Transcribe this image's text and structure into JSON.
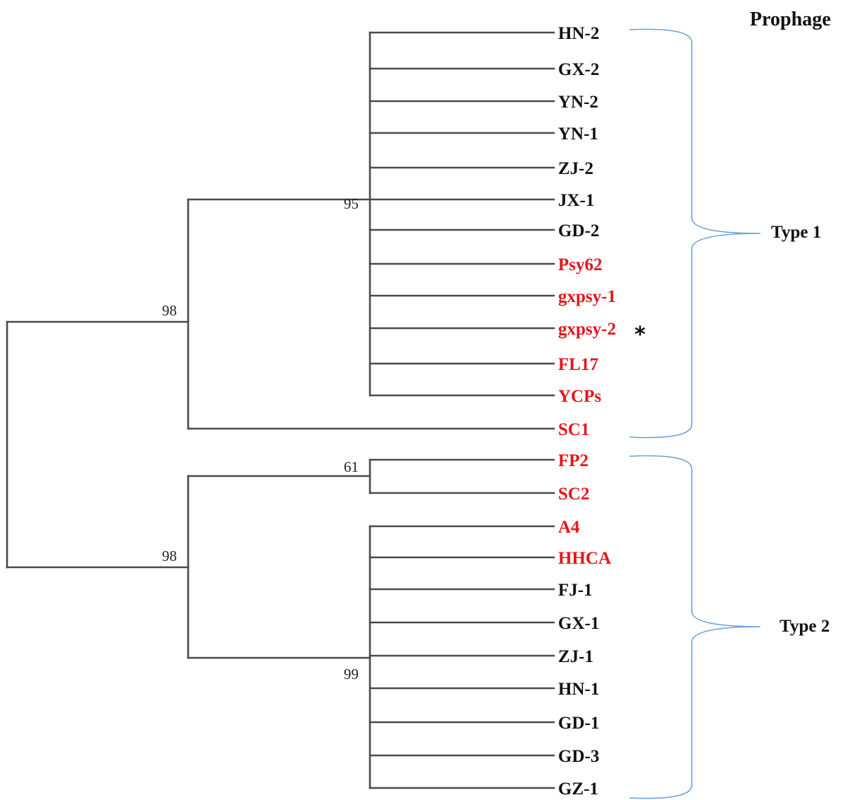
{
  "header": {
    "title": "Prophage"
  },
  "colors": {
    "highlight": "#e8141a",
    "default": "#111111",
    "branch": "#4a4a4a",
    "brace": "#6aa0d8"
  },
  "groups": [
    {
      "label": "Type 1"
    },
    {
      "label": "Type 2"
    }
  ],
  "supports": [
    "98",
    "95",
    "98",
    "61",
    "99"
  ],
  "marker": "*",
  "leaves": [
    {
      "label": "HN-2",
      "highlight": false
    },
    {
      "label": "GX-2",
      "highlight": false
    },
    {
      "label": "YN-2",
      "highlight": false
    },
    {
      "label": "YN-1",
      "highlight": false
    },
    {
      "label": "ZJ-2",
      "highlight": false
    },
    {
      "label": "JX-1",
      "highlight": false
    },
    {
      "label": "GD-2",
      "highlight": false
    },
    {
      "label": "Psy62",
      "highlight": true
    },
    {
      "label": "gxpsy-1",
      "highlight": true
    },
    {
      "label": "gxpsy-2",
      "highlight": true
    },
    {
      "label": "FL17",
      "highlight": true
    },
    {
      "label": "YCPs",
      "highlight": true
    },
    {
      "label": "SC1",
      "highlight": true
    },
    {
      "label": "FP2",
      "highlight": true
    },
    {
      "label": "SC2",
      "highlight": true
    },
    {
      "label": "A4",
      "highlight": true
    },
    {
      "label": "HHCA",
      "highlight": true
    },
    {
      "label": "FJ-1",
      "highlight": false
    },
    {
      "label": "GX-1",
      "highlight": false
    },
    {
      "label": "ZJ-1",
      "highlight": false
    },
    {
      "label": "HN-1",
      "highlight": false
    },
    {
      "label": "GD-1",
      "highlight": false
    },
    {
      "label": "GD-3",
      "highlight": false
    },
    {
      "label": "GZ-1",
      "highlight": false
    }
  ]
}
